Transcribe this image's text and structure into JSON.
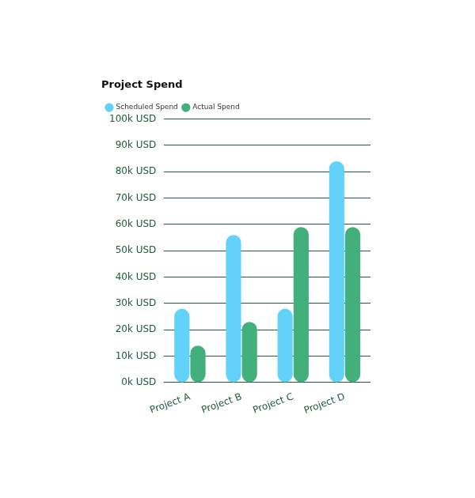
{
  "chart_data": {
    "type": "bar",
    "title": "Project Spend",
    "categories": [
      "Project A",
      "Project B",
      "Project C",
      "Project D"
    ],
    "series": [
      {
        "name": "Scheduled Spend",
        "color": "#63d2fb",
        "values": [
          28,
          56,
          28,
          84
        ]
      },
      {
        "name": "Actual Spend",
        "color": "#43b07c",
        "values": [
          14,
          23,
          59,
          59
        ]
      }
    ],
    "ylim": [
      0,
      100
    ],
    "yticks": [
      {
        "value": 0,
        "label": "0k USD"
      },
      {
        "value": 10,
        "label": "10k USD"
      },
      {
        "value": 20,
        "label": "20k USD"
      },
      {
        "value": 30,
        "label": "30k USD"
      },
      {
        "value": 40,
        "label": "40k USD"
      },
      {
        "value": 50,
        "label": "50k USD"
      },
      {
        "value": 60,
        "label": "60k USD"
      },
      {
        "value": 70,
        "label": "70k USD"
      },
      {
        "value": 80,
        "label": "80k USD"
      },
      {
        "value": 90,
        "label": "90k USD"
      },
      {
        "value": 100,
        "label": "100k USD"
      }
    ],
    "grid": true,
    "legend": "top-left"
  }
}
